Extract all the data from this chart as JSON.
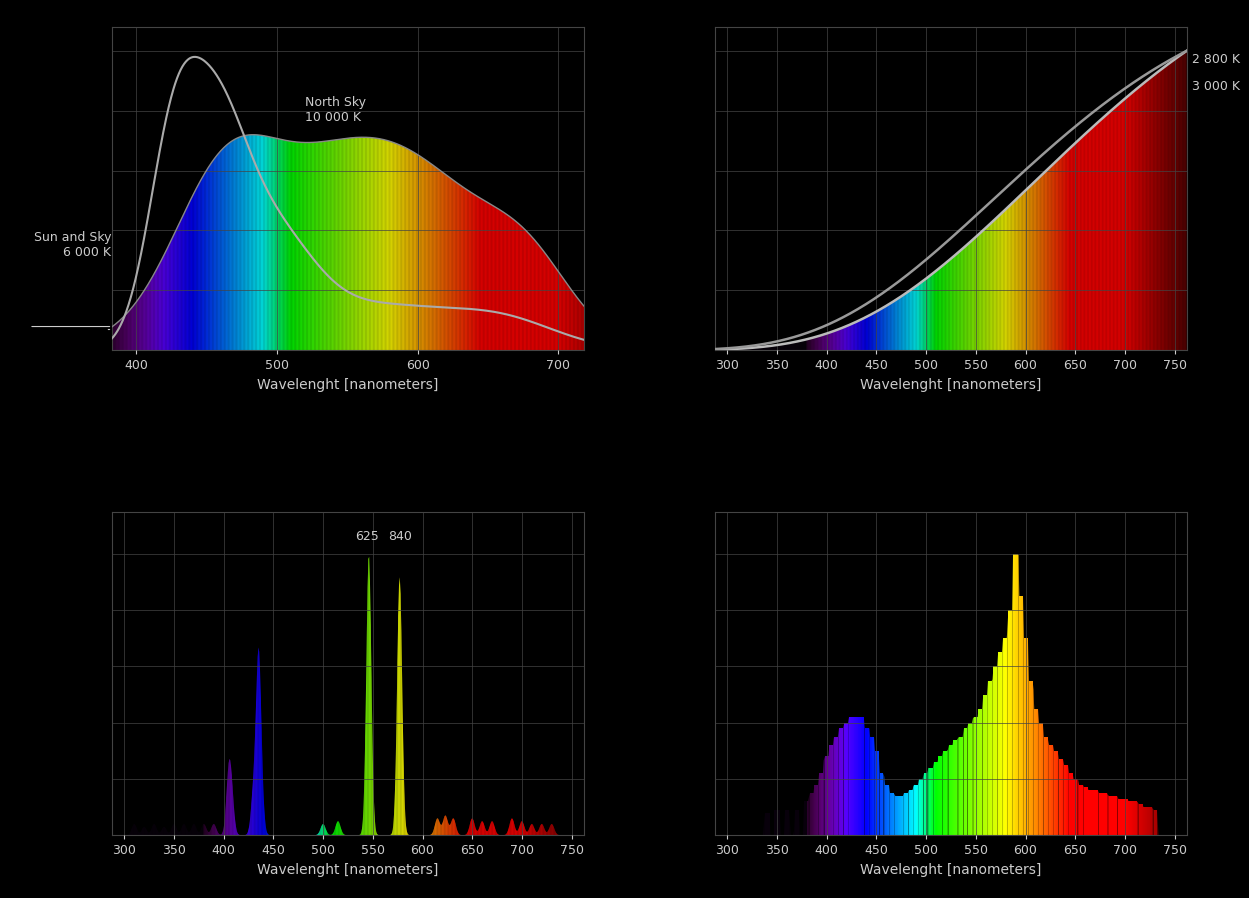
{
  "background_color": "#000000",
  "ax_bg_color": "#000000",
  "text_color": "#cccccc",
  "grid_color": "#444444",
  "xlabel": "Wavelenght [nanometers]",
  "plot1": {
    "xlim": [
      383,
      718
    ],
    "ylim": [
      0,
      1.08
    ],
    "xticks": [
      400,
      500,
      600,
      700
    ],
    "label_north_sky": "North Sky\n10 000 K",
    "label_sun": "Sun and Sky\n6 000 K"
  },
  "plot2": {
    "xlim": [
      288,
      762
    ],
    "ylim": [
      0,
      1.08
    ],
    "xticks": [
      300,
      350,
      400,
      450,
      500,
      550,
      600,
      650,
      700,
      750
    ],
    "label_2800": "2 800 K",
    "label_3000": "3 000 K"
  },
  "plot3": {
    "xlim": [
      288,
      762
    ],
    "ylim": [
      0,
      1.15
    ],
    "xticks": [
      300,
      350,
      400,
      450,
      500,
      550,
      600,
      650,
      700,
      750
    ],
    "ann1": "625",
    "ann2": "840"
  },
  "plot4": {
    "xlim": [
      288,
      762
    ],
    "ylim": [
      0,
      1.15
    ],
    "xticks": [
      300,
      350,
      400,
      450,
      500,
      550,
      600,
      650,
      700,
      750
    ]
  }
}
